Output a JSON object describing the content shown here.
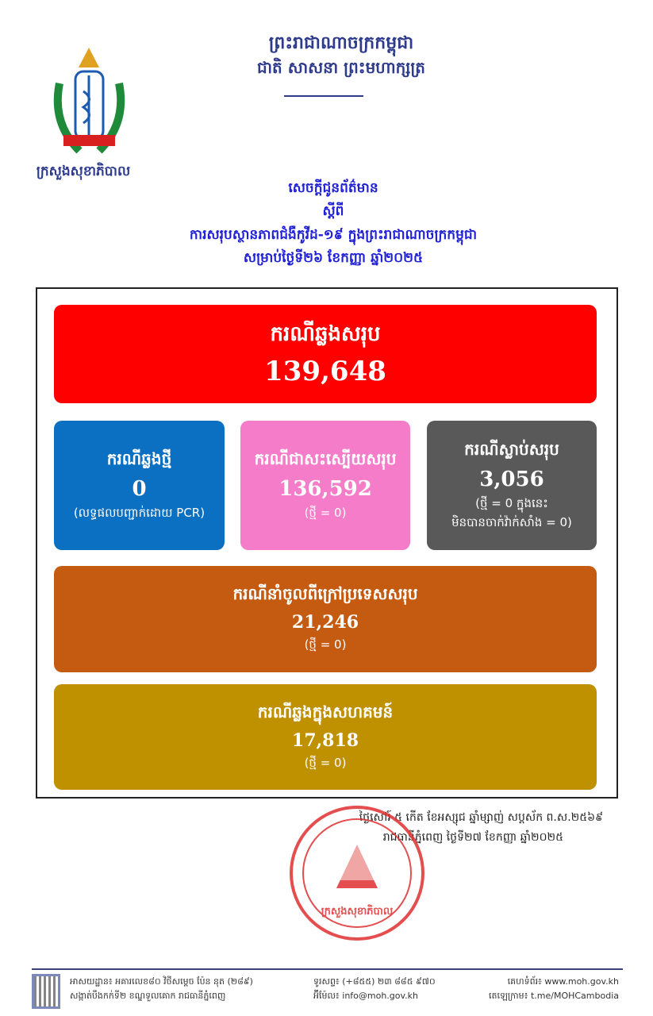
{
  "header": {
    "kingdom": "ព្រះរាជាណាចក្រកម្ពុជា",
    "motto": "ជាតិ សាសនា ព្រះមហាក្សត្រ",
    "ministry": "ក្រសួងសុខាភិបាល"
  },
  "title": {
    "line1": "សេចក្តីជូនព័ត៌មាន",
    "line2": "ស្តីពី",
    "line3": "ការសរុបស្ថានភាពជំងឺកូវីដ-១៩ ក្នុងព្រះរាជាណាចក្រកម្ពុជា",
    "line4": "សម្រាប់ថ្ងៃទី២៦ ខែកញ្ញា ឆ្នាំ២០២៥"
  },
  "cards": {
    "total": {
      "label": "ករណីឆ្លងសរុប",
      "value": "139,648",
      "color": "#ff0000"
    },
    "new": {
      "label": "ករណីឆ្លងថ្មី",
      "value": "0",
      "note": "(លទ្ធផលបញ្ជាក់ដោយ PCR)",
      "color": "#0b6fc2"
    },
    "recovered": {
      "label": "ករណីជាសះស្បើយសរុប",
      "value": "136,592",
      "note": "(ថ្មី = 0)",
      "color": "#f47cc9"
    },
    "deaths": {
      "label": "ករណីស្លាប់សរុប",
      "value": "3,056",
      "note1": "(ថ្មី = 0 ក្នុងនេះ",
      "note2": "មិនបានចាក់វ៉ាក់សាំង = 0)",
      "color": "#595959"
    },
    "imported": {
      "label": "ករណីនាំចូលពីក្រៅប្រទេសសរុប",
      "value": "21,246",
      "note": "(ថ្មី = 0)",
      "color": "#c55a11"
    },
    "community": {
      "label": "ករណីឆ្លងក្នុងសហគមន៍",
      "value": "17,818",
      "note": "(ថ្មី = 0)",
      "color": "#bf9000"
    }
  },
  "date": {
    "lunar": "ថ្ងៃសៅរ៍ ៥ កើត ខែអស្សុជ ឆ្នាំម្សាញ់ សប្តស័ក ព.ស.២៥៦៩",
    "solar": "រាជធានីភ្នំពេញ ថ្ងៃទី២៧ ខែកញ្ញា ឆ្នាំ២០២៥"
  },
  "stamp": {
    "text": "ក្រសួងសុខាភិបាល"
  },
  "footer": {
    "address1": "អាសយដ្ឋាន៖ អគារលេខ៨០ វិថីសម្តេច ប៉ែន នុត (២៨៩)",
    "address2": "សង្កាត់បឹងកក់ទី២ ខណ្ឌទួលគោក រាជធានីភ្នំពេញ",
    "phone": "ទូរសព្ទ៖ (+៨៥៥) ២៣ ៨៨៥ ៩៧០",
    "email": "អ៊ីម៉ែល៖ info@moh.gov.kh",
    "website": "គេហទំព័រ៖ www.moh.gov.kh",
    "telegram": "តេឡេក្រាម៖ t.me/MOHCambodia"
  }
}
